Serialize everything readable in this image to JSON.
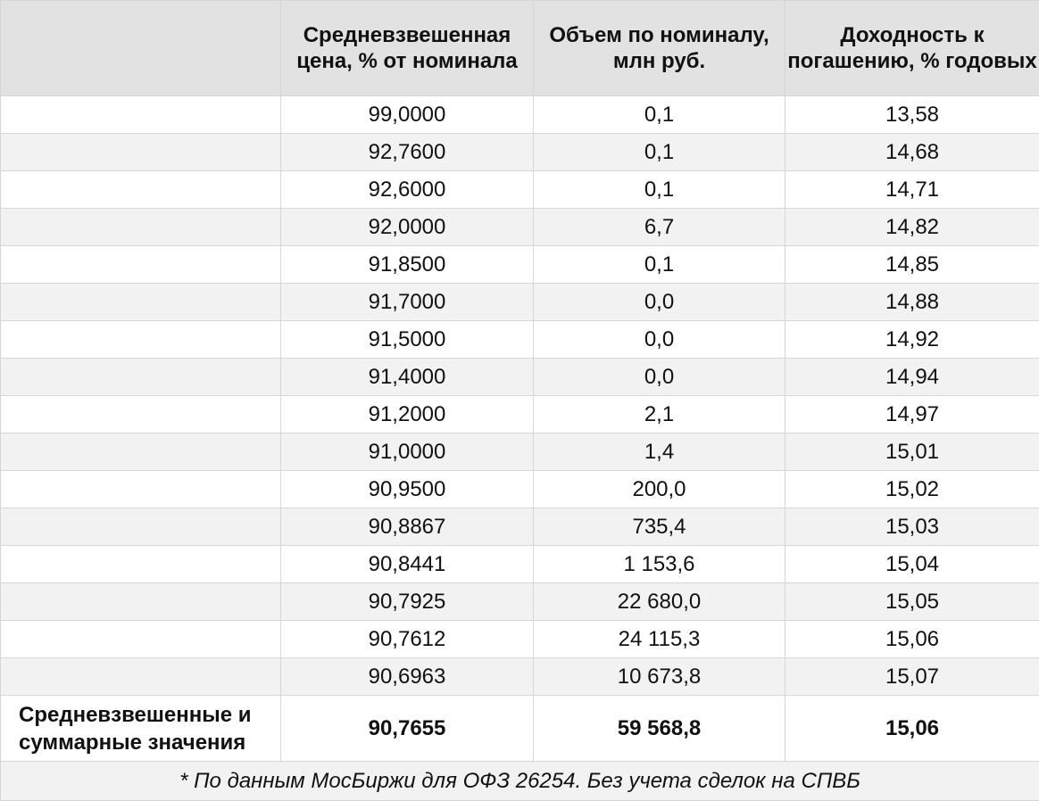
{
  "table": {
    "headers": [
      "",
      "Средневзвешенная цена, % от номинала",
      "Объем по номиналу, млн руб.",
      "Доходность к погашению, % годовых"
    ],
    "rows": [
      [
        "",
        "99,0000",
        "0,1",
        "13,58"
      ],
      [
        "",
        "92,7600",
        "0,1",
        "14,68"
      ],
      [
        "",
        "92,6000",
        "0,1",
        "14,71"
      ],
      [
        "",
        "92,0000",
        "6,7",
        "14,82"
      ],
      [
        "",
        "91,8500",
        "0,1",
        "14,85"
      ],
      [
        "",
        "91,7000",
        "0,0",
        "14,88"
      ],
      [
        "",
        "91,5000",
        "0,0",
        "14,92"
      ],
      [
        "",
        "91,4000",
        "0,0",
        "14,94"
      ],
      [
        "",
        "91,2000",
        "2,1",
        "14,97"
      ],
      [
        "",
        "91,0000",
        "1,4",
        "15,01"
      ],
      [
        "",
        "90,9500",
        "200,0",
        "15,02"
      ],
      [
        "",
        "90,8867",
        "735,4",
        "15,03"
      ],
      [
        "",
        "90,8441",
        "1 153,6",
        "15,04"
      ],
      [
        "",
        "90,7925",
        "22 680,0",
        "15,05"
      ],
      [
        "",
        "90,7612",
        "24 115,3",
        "15,06"
      ],
      [
        "",
        "90,6963",
        "10 673,8",
        "15,07"
      ]
    ],
    "total": {
      "label": "Средневзвешенные и суммарные значения",
      "price": "90,7655",
      "volume": "59 568,8",
      "yield": "15,06"
    },
    "footnote": "* По данным МосБиржи для ОФЗ 26254. Без учета сделок на СПВБ"
  },
  "colors": {
    "header_bg": "#e2e2e2",
    "zebra_bg": "#f2f2f2",
    "border": "#d6d6d6"
  }
}
